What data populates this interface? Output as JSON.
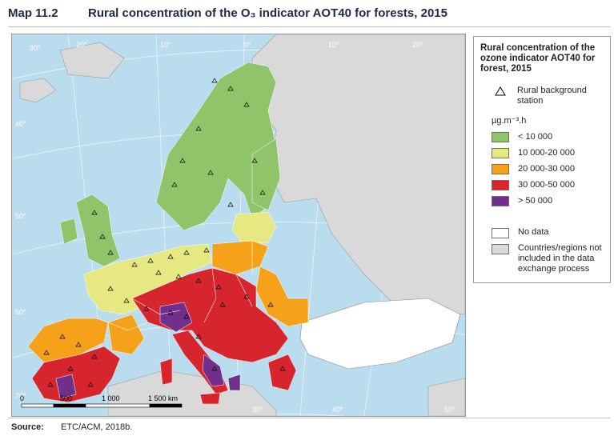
{
  "header": {
    "map_number": "Map 11.2",
    "title": "Rural concentration of the O₃ indicator AOT40 for forests, 2015"
  },
  "map": {
    "graticule_labels": [
      "30°",
      "40°",
      "50°",
      "60°",
      "70°",
      "20°",
      "10°",
      "0°",
      "10°",
      "20°",
      "30°",
      "40°",
      "50°"
    ],
    "scale_labels": [
      "0",
      "500",
      "1 000",
      "1 500 km"
    ],
    "colors": {
      "sea": "#b9dcef",
      "non_included": "#d9d9d9",
      "no_data": "#ffffff",
      "class_lt_10000": "#8fc46a",
      "class_10000_20000": "#e6e881",
      "class_20000_30000": "#f5a21a",
      "class_30000_50000": "#d7252e",
      "class_gt_50000": "#6f2f8b"
    }
  },
  "legend": {
    "title": "Rural concentration of the ozone indicator AOT40 for forest, 2015",
    "station_label": "Rural background station",
    "unit": "µg.m⁻³.h",
    "classes": [
      {
        "label": "< 10 000",
        "color": "#8fc46a"
      },
      {
        "label": "10 000-20 000",
        "color": "#e6e881"
      },
      {
        "label": "20 000-30 000",
        "color": "#f5a21a"
      },
      {
        "label": "30 000-50 000",
        "color": "#d7252e"
      },
      {
        "label": "> 50 000",
        "color": "#6f2f8b"
      }
    ],
    "no_data": {
      "label": "No data",
      "color": "#ffffff"
    },
    "not_included": {
      "label": "Countries/regions not included in the data exchange process",
      "color": "#d9d9d9"
    }
  },
  "footer": {
    "source_label": "Source:",
    "source_text": "ETC/ACM, 2018b."
  }
}
